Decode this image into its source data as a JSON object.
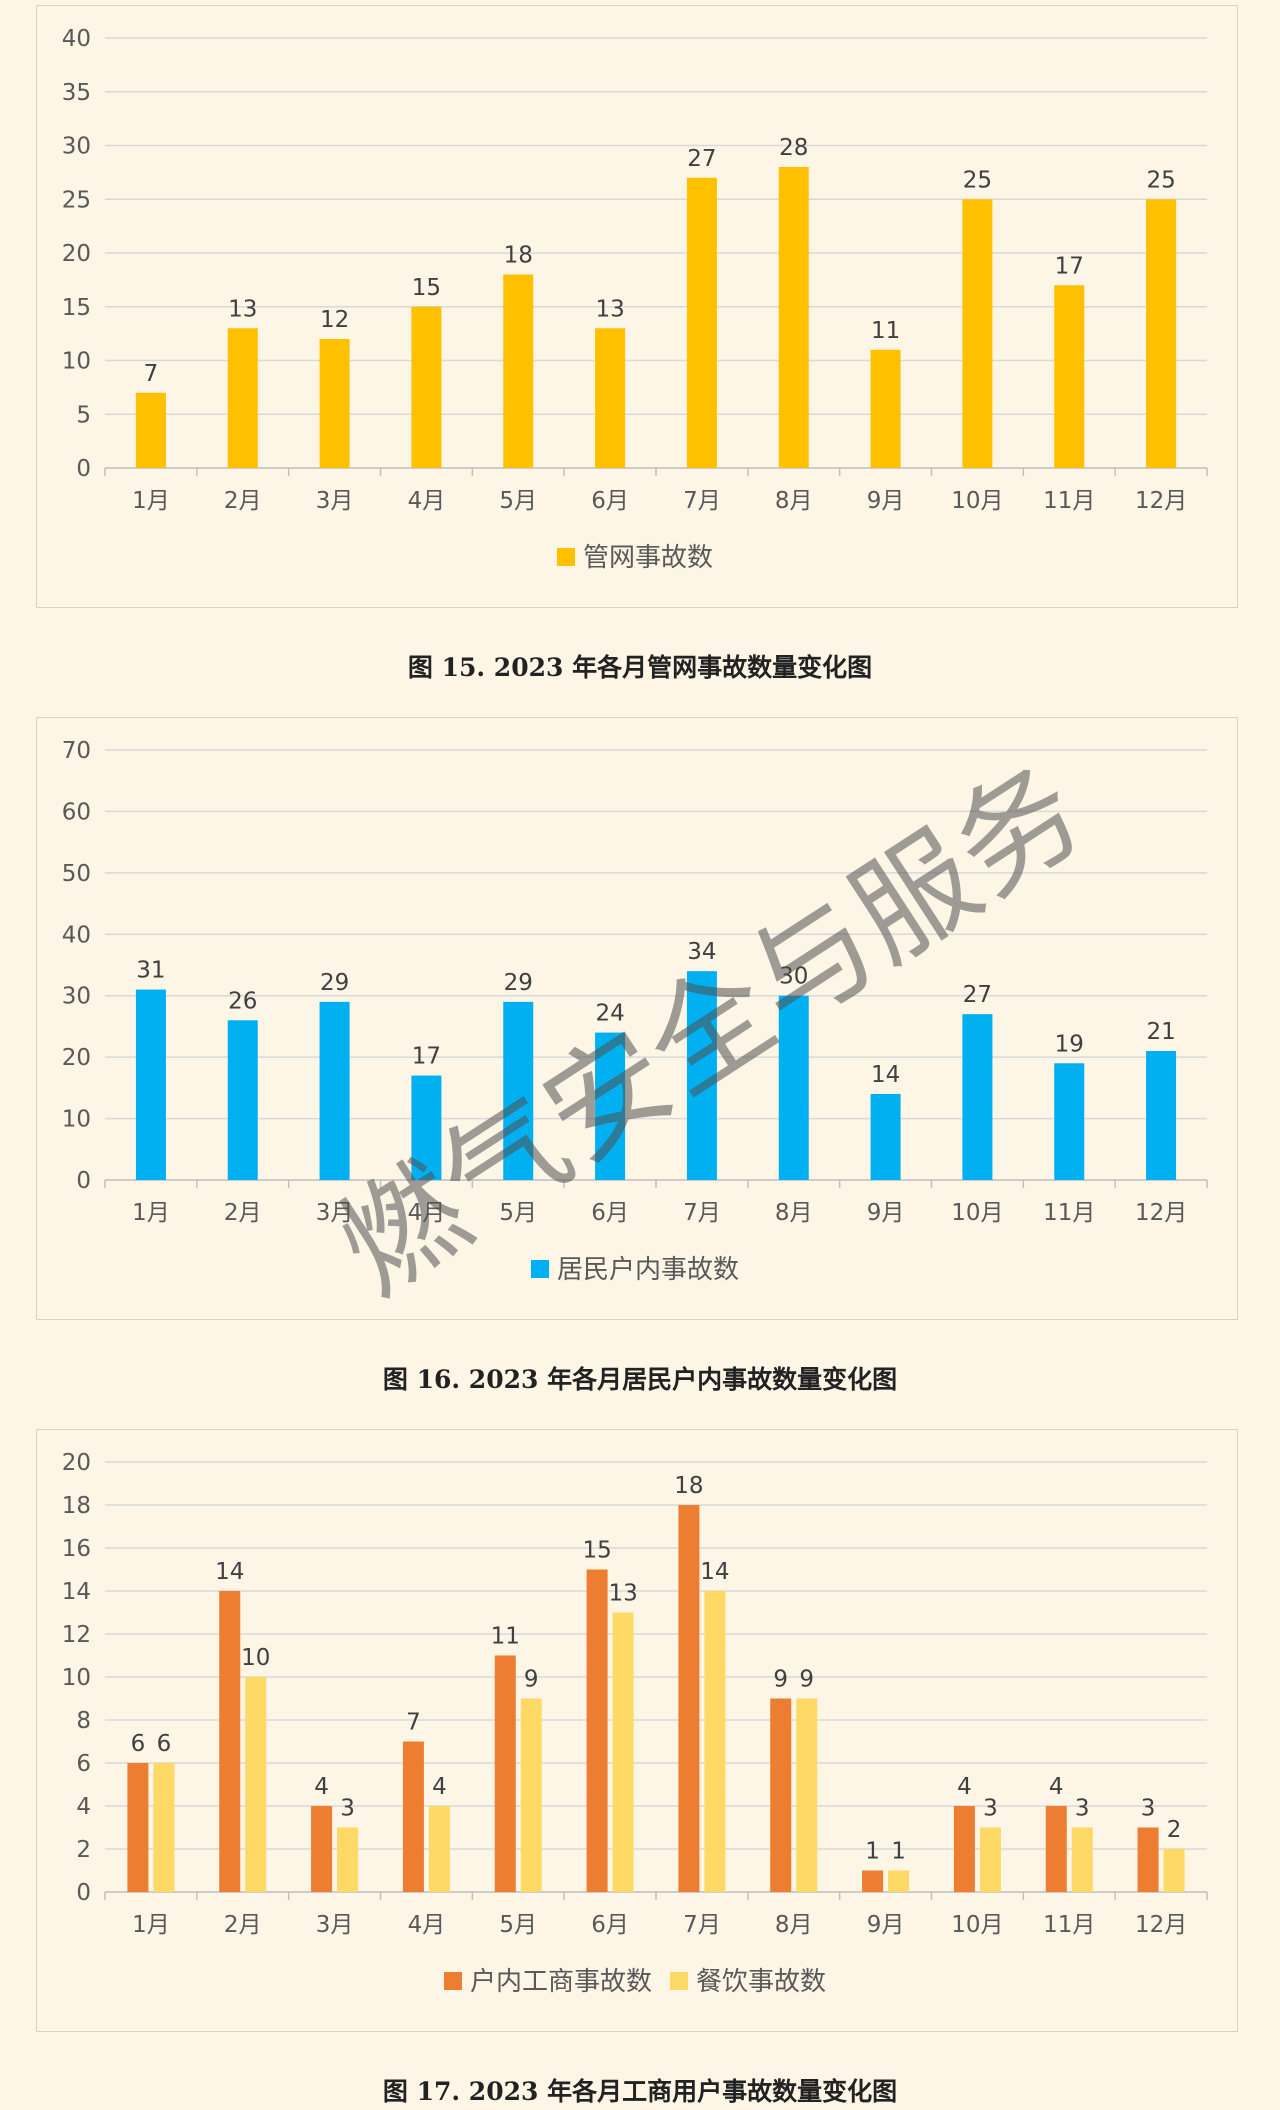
{
  "chart_data": [
    {
      "type": "bar",
      "categories": [
        "1月",
        "2月",
        "3月",
        "4月",
        "5月",
        "6月",
        "7月",
        "8月",
        "9月",
        "10月",
        "11月",
        "12月"
      ],
      "series": [
        {
          "name": "管网事故数",
          "values": [
            7,
            13,
            12,
            15,
            18,
            13,
            27,
            28,
            11,
            25,
            17,
            25
          ],
          "color": "#ffc000"
        }
      ],
      "ylim": [
        0,
        40
      ],
      "ystep": 5,
      "title": "图 15. 2023 年各月管网事故数量变化图"
    },
    {
      "type": "bar",
      "categories": [
        "1月",
        "2月",
        "3月",
        "4月",
        "5月",
        "6月",
        "7月",
        "8月",
        "9月",
        "10月",
        "11月",
        "12月"
      ],
      "series": [
        {
          "name": "居民户内事故数",
          "values": [
            31,
            26,
            29,
            17,
            29,
            24,
            34,
            30,
            14,
            27,
            19,
            21
          ],
          "color": "#00b0f0"
        }
      ],
      "ylim": [
        0,
        70
      ],
      "ystep": 10,
      "title": "图 16. 2023 年各月居民户内事故数量变化图"
    },
    {
      "type": "bar",
      "categories": [
        "1月",
        "2月",
        "3月",
        "4月",
        "5月",
        "6月",
        "7月",
        "8月",
        "9月",
        "10月",
        "11月",
        "12月"
      ],
      "series": [
        {
          "name": "户内工商事故数",
          "values": [
            6,
            14,
            4,
            7,
            11,
            15,
            18,
            9,
            1,
            4,
            4,
            3
          ],
          "color": "#ed7d31"
        },
        {
          "name": "餐饮事故数",
          "values": [
            6,
            10,
            3,
            4,
            9,
            13,
            14,
            9,
            1,
            3,
            3,
            2
          ],
          "color": "#ffd966"
        }
      ],
      "ylim": [
        0,
        20
      ],
      "ystep": 2,
      "title": "图 17. 2023 年各月工商用户事故数量变化图"
    }
  ],
  "watermark": "燃气安全与服务"
}
